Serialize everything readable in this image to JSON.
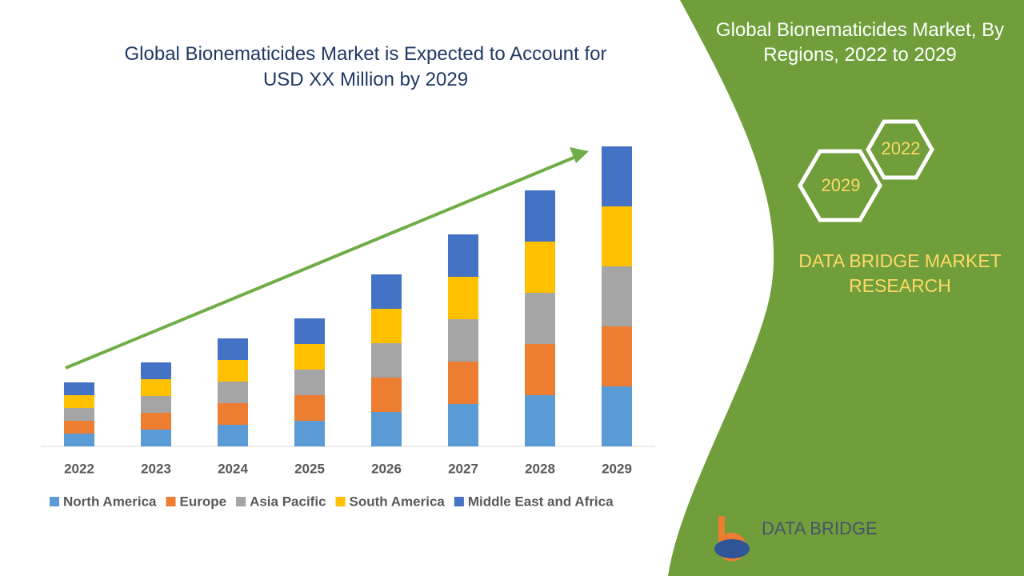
{
  "chart_data": {
    "type": "stacked-bar",
    "title": "Global Bionematicides Market is Expected to Account for USD XX Million by 2029",
    "categories": [
      "2022",
      "2023",
      "2024",
      "2025",
      "2026",
      "2027",
      "2028",
      "2029"
    ],
    "series": [
      {
        "name": "North America",
        "color": "#5b9bd5",
        "values": [
          16,
          21,
          27,
          32,
          43,
          53,
          64,
          75
        ]
      },
      {
        "name": "Europe",
        "color": "#ed7d31",
        "values": [
          16,
          21,
          27,
          32,
          43,
          53,
          64,
          75
        ]
      },
      {
        "name": "Asia Pacific",
        "color": "#a5a5a5",
        "values": [
          16,
          21,
          27,
          32,
          43,
          53,
          64,
          75
        ]
      },
      {
        "name": "South America",
        "color": "#ffc000",
        "values": [
          16,
          21,
          27,
          32,
          43,
          53,
          64,
          75
        ]
      },
      {
        "name": "Middle East and Africa",
        "color": "#4472c4",
        "values": [
          16,
          21,
          27,
          32,
          43,
          53,
          64,
          75
        ]
      }
    ],
    "ylim": [
      0,
      400
    ]
  },
  "panel": {
    "title": "Global Bionematicides Market, By Regions, 2022 to 2029",
    "hex_labels": [
      "2022",
      "2029"
    ],
    "brand": "DATA BRIDGE MARKET RESEARCH"
  },
  "logo": {
    "name": "DATA BRIDGE"
  }
}
